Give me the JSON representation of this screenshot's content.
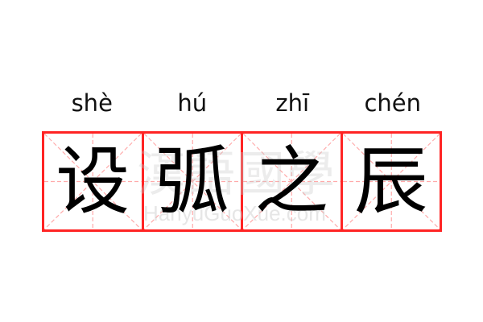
{
  "entries": [
    {
      "pinyin": "shè",
      "character": "设"
    },
    {
      "pinyin": "hú",
      "character": "弧"
    },
    {
      "pinyin": "zhī",
      "character": "之"
    },
    {
      "pinyin": "chén",
      "character": "辰"
    }
  ],
  "watermark": {
    "logo_text": "漢語國學",
    "site_text": "HanyuGuoXue.com"
  },
  "colors": {
    "grid_border": "#ff2424",
    "guide_lines": "#ffaaaa",
    "character": "#000000"
  }
}
